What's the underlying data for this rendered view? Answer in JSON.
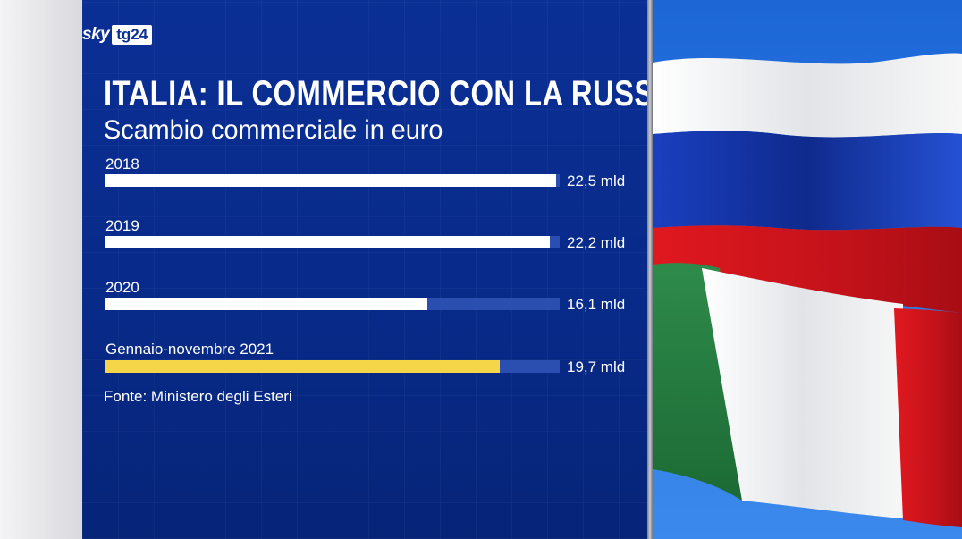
{
  "brand": {
    "sky": "sky",
    "tg": "tg24"
  },
  "chart_data": {
    "type": "bar",
    "orientation": "horizontal",
    "title": "ITALIA: IL COMMERCIO CON LA RUSSIA",
    "subtitle": "Scambio commerciale in euro",
    "categories": [
      "2018",
      "2019",
      "2020",
      "Gennaio-novembre 2021"
    ],
    "values": [
      22.5,
      22.2,
      16.1,
      19.7
    ],
    "value_labels": [
      "22,5 mld",
      "22,2 mld",
      "16,1 mld",
      "19,7 mld"
    ],
    "unit": "mld",
    "xlim": [
      0,
      22.7
    ],
    "grid": false,
    "colors": {
      "bar": "#ffffff",
      "highlight": "#f5d648",
      "track": "#2a4fb0",
      "background": "#0a2f95"
    },
    "highlight_index": 3,
    "source": "Fonte: Ministero degli Esteri"
  },
  "image": {
    "subject": "flags-photo"
  }
}
